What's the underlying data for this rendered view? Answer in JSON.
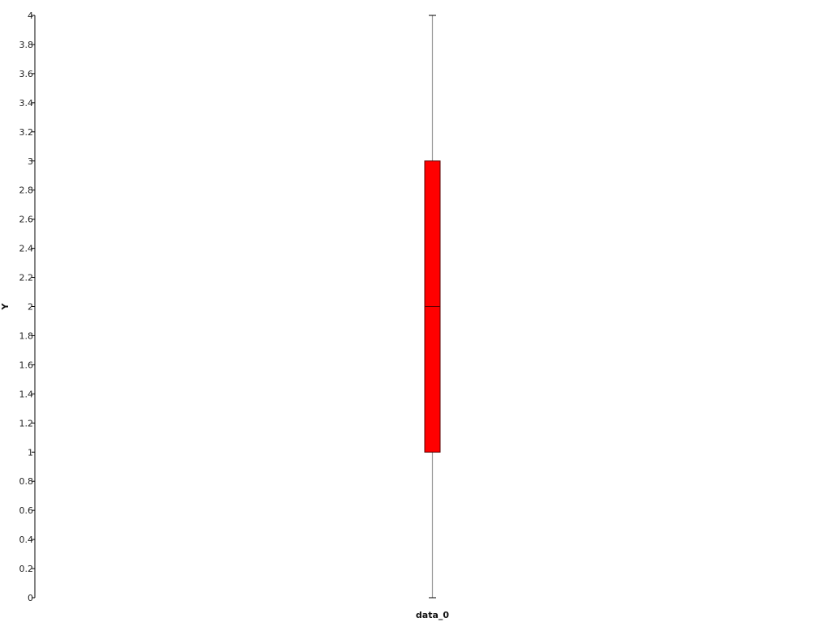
{
  "chart_data": {
    "type": "box",
    "categories": [
      "data_0"
    ],
    "series": [
      {
        "min": 0,
        "q1": 1,
        "median": 2,
        "q3": 3,
        "max": 4,
        "color": "#ff0000"
      }
    ],
    "ylabel": "Y",
    "xlabel": "",
    "ylim": [
      0,
      4
    ],
    "yticks": [
      0,
      0.2,
      0.4,
      0.6,
      0.8,
      1,
      1.2,
      1.4,
      1.6,
      1.8,
      2,
      2.2,
      2.4,
      2.6,
      2.8,
      3,
      3.2,
      3.4,
      3.6,
      3.8,
      4
    ],
    "grid": false
  }
}
